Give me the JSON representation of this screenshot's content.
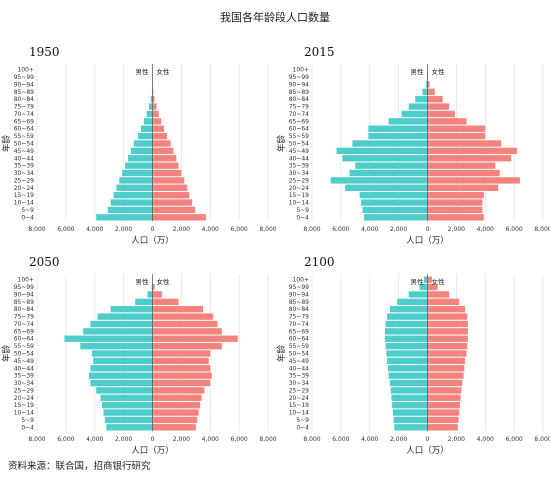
{
  "title": "我国各年龄段人口数量",
  "source": "资料来源：联合国，招商银行研究",
  "chart_data": [
    {
      "type": "bar",
      "title": "1950",
      "xlabel": "人口（万）",
      "ylabel": "年龄",
      "xlim": [
        -8000,
        8000
      ],
      "xtick_labels": [
        "8,000",
        "6,000",
        "4,000",
        "2,000",
        "0",
        "2,000",
        "4,000",
        "6,000",
        "8,000"
      ],
      "male_label": "男性",
      "female_label": "女性",
      "colors": {
        "male": "#4ecdcb",
        "female": "#f4827d"
      },
      "grid": true,
      "categories": [
        "0~4",
        "5~9",
        "10~14",
        "15~19",
        "20~24",
        "25~29",
        "30~34",
        "35~39",
        "40~44",
        "45~49",
        "50~54",
        "55~59",
        "60~64",
        "65~69",
        "70~74",
        "75~79",
        "80~84",
        "85~89",
        "90~94",
        "95~99",
        "100+"
      ],
      "series": [
        {
          "name": "男性",
          "values": [
            3900,
            3100,
            2900,
            2700,
            2500,
            2300,
            2100,
            1900,
            1700,
            1500,
            1300,
            1000,
            800,
            600,
            400,
            250,
            120,
            40,
            10,
            2,
            0
          ]
        },
        {
          "name": "女性",
          "values": [
            3700,
            2950,
            2750,
            2550,
            2400,
            2200,
            2000,
            1800,
            1650,
            1450,
            1250,
            1000,
            800,
            600,
            430,
            280,
            140,
            50,
            15,
            3,
            0
          ]
        }
      ]
    },
    {
      "type": "bar",
      "title": "2015",
      "xlabel": "人口（万）",
      "ylabel": "年龄",
      "xlim": [
        -8000,
        8000
      ],
      "xtick_labels": [
        "8,000",
        "6,000",
        "4,000",
        "2,000",
        "0",
        "2,000",
        "4,000",
        "6,000",
        "8,000"
      ],
      "male_label": "男性",
      "female_label": "女性",
      "colors": {
        "male": "#4ecdcb",
        "female": "#f4827d"
      },
      "grid": true,
      "categories": [
        "0~4",
        "5~9",
        "10~14",
        "15~19",
        "20~24",
        "25~29",
        "30~34",
        "35~39",
        "40~44",
        "45~49",
        "50~54",
        "55~59",
        "60~64",
        "65~69",
        "70~74",
        "75~79",
        "80~84",
        "85~89",
        "90~94",
        "95~99",
        "100+"
      ],
      "series": [
        {
          "name": "男性",
          "values": [
            4400,
            4500,
            4600,
            4700,
            5700,
            6700,
            5400,
            5000,
            5900,
            6300,
            5200,
            4100,
            4100,
            2700,
            1800,
            1300,
            850,
            350,
            100,
            20,
            2
          ]
        },
        {
          "name": "女性",
          "values": [
            3900,
            3800,
            3800,
            3900,
            4900,
            6400,
            5000,
            4700,
            5800,
            6200,
            5100,
            4000,
            4000,
            2700,
            1900,
            1500,
            1050,
            500,
            150,
            30,
            5
          ]
        }
      ]
    },
    {
      "type": "bar",
      "title": "2050",
      "xlabel": "人口（万）",
      "ylabel": "年龄",
      "xlim": [
        -8000,
        8000
      ],
      "xtick_labels": [
        "8,000",
        "6,000",
        "4,000",
        "2,000",
        "0",
        "2,000",
        "4,000",
        "6,000",
        "8,000"
      ],
      "male_label": "男性",
      "female_label": "女性",
      "colors": {
        "male": "#4ecdcb",
        "female": "#f4827d"
      },
      "grid": true,
      "categories": [
        "0~4",
        "5~9",
        "10~14",
        "15~19",
        "20~24",
        "25~29",
        "30~34",
        "35~39",
        "40~44",
        "45~49",
        "50~54",
        "55~59",
        "60~64",
        "65~69",
        "70~74",
        "75~79",
        "80~84",
        "85~89",
        "90~94",
        "95~99",
        "100+"
      ],
      "series": [
        {
          "name": "男性",
          "values": [
            3200,
            3300,
            3400,
            3500,
            3600,
            3900,
            4300,
            4400,
            4300,
            4100,
            4200,
            5000,
            6100,
            4800,
            4300,
            3800,
            2900,
            1200,
            350,
            60,
            5
          ]
        },
        {
          "name": "女性",
          "values": [
            3000,
            3100,
            3200,
            3300,
            3400,
            3600,
            4000,
            4100,
            4000,
            3900,
            4000,
            4800,
            5900,
            4800,
            4500,
            4200,
            3500,
            1800,
            650,
            150,
            15
          ]
        }
      ]
    },
    {
      "type": "bar",
      "title": "2100",
      "xlabel": "人口（万）",
      "ylabel": "年龄",
      "xlim": [
        -8000,
        8000
      ],
      "xtick_labels": [
        "8,000",
        "6,000",
        "4,000",
        "2,000",
        "0",
        "2,000",
        "4,000",
        "6,000",
        "8,000"
      ],
      "male_label": "男性",
      "female_label": "女性",
      "colors": {
        "male": "#4ecdcb",
        "female": "#f4827d"
      },
      "grid": true,
      "categories": [
        "0~4",
        "5~9",
        "10~14",
        "15~19",
        "20~24",
        "25~29",
        "30~34",
        "35~39",
        "40~44",
        "45~49",
        "50~54",
        "55~59",
        "60~64",
        "65~69",
        "70~74",
        "75~79",
        "80~84",
        "85~89",
        "90~94",
        "95~99",
        "100+"
      ],
      "series": [
        {
          "name": "男性",
          "values": [
            2300,
            2350,
            2400,
            2450,
            2500,
            2550,
            2600,
            2700,
            2750,
            2800,
            2850,
            2900,
            2950,
            2950,
            2900,
            2800,
            2600,
            2100,
            1300,
            550,
            250
          ]
        },
        {
          "name": "女性",
          "values": [
            2100,
            2150,
            2200,
            2250,
            2300,
            2350,
            2400,
            2500,
            2550,
            2600,
            2700,
            2750,
            2800,
            2800,
            2800,
            2750,
            2600,
            2200,
            1500,
            700,
            300
          ]
        }
      ]
    }
  ]
}
